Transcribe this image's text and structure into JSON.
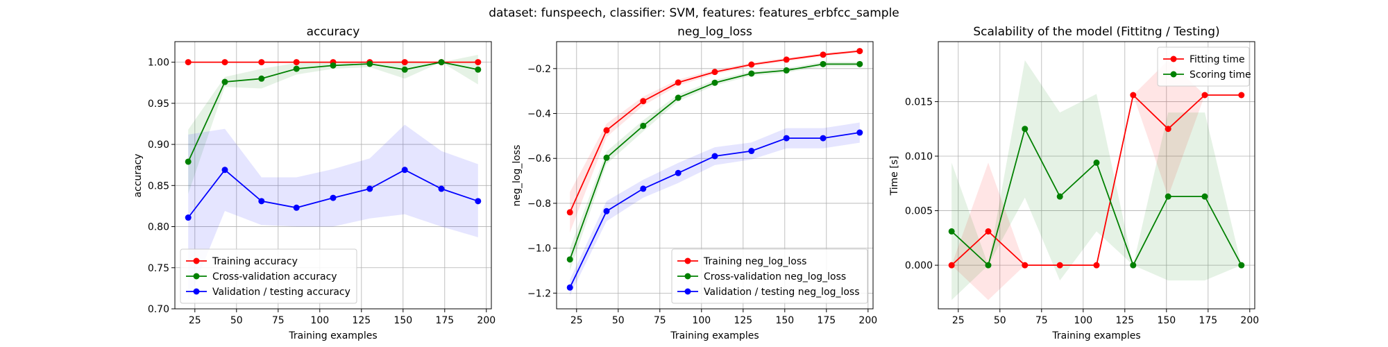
{
  "chart_data": {
    "suptitle": "dataset: funspeech, classifier: SVM, features: features_erbfcc_sample",
    "panels": [
      {
        "type": "line",
        "title": "accuracy",
        "xlabel": "Training examples",
        "ylabel": "accuracy",
        "xlim": [
          13,
          203
        ],
        "ylim": [
          0.7,
          1.025
        ],
        "xticks": [
          25,
          50,
          75,
          100,
          125,
          150,
          175,
          200
        ],
        "yticks": [
          0.7,
          0.75,
          0.8,
          0.85,
          0.9,
          0.95,
          1.0
        ],
        "ytick_labels": [
          "0.70",
          "0.75",
          "0.80",
          "0.85",
          "0.90",
          "0.95",
          "1.00"
        ],
        "grid": true,
        "legend": "lower-left",
        "x": [
          21,
          43,
          65,
          86,
          108,
          130,
          151,
          173,
          195
        ],
        "series": [
          {
            "name": "Training accuracy",
            "color": "#ff0000",
            "values": [
              1.0,
              1.0,
              1.0,
              1.0,
              1.0,
              1.0,
              1.0,
              1.0,
              1.0
            ],
            "lower": [
              1.0,
              1.0,
              1.0,
              1.0,
              1.0,
              1.0,
              1.0,
              1.0,
              1.0
            ],
            "upper": [
              1.0,
              1.0,
              1.0,
              1.0,
              1.0,
              1.0,
              1.0,
              1.0,
              1.0
            ]
          },
          {
            "name": "Cross-validation accuracy",
            "color": "#008000",
            "values": [
              0.879,
              0.976,
              0.98,
              0.992,
              0.996,
              0.998,
              0.991,
              1.0,
              0.991
            ],
            "lower": [
              0.84,
              0.97,
              0.968,
              0.985,
              0.992,
              0.994,
              0.98,
              1.0,
              0.973
            ],
            "upper": [
              0.918,
              0.982,
              0.992,
              0.999,
              1.0,
              1.0,
              1.002,
              1.0,
              1.009
            ]
          },
          {
            "name": "Validation / testing accuracy",
            "color": "#0000ff",
            "values": [
              0.811,
              0.869,
              0.831,
              0.823,
              0.835,
              0.846,
              0.869,
              0.846,
              0.831
            ],
            "lower": [
              0.71,
              0.819,
              0.802,
              0.8,
              0.8,
              0.81,
              0.815,
              0.8,
              0.787
            ],
            "upper": [
              0.912,
              0.919,
              0.86,
              0.86,
              0.87,
              0.883,
              0.924,
              0.892,
              0.876
            ]
          }
        ]
      },
      {
        "type": "line",
        "title": "neg_log_loss",
        "xlabel": "Training examples",
        "ylabel": "neg_log_loss",
        "xlim": [
          13,
          203
        ],
        "ylim": [
          -1.27,
          -0.08
        ],
        "xticks": [
          25,
          50,
          75,
          100,
          125,
          150,
          175,
          200
        ],
        "yticks": [
          -1.2,
          -1.0,
          -0.8,
          -0.6,
          -0.4,
          -0.2
        ],
        "ytick_labels": [
          "−1.2",
          "−1.0",
          "−0.8",
          "−0.6",
          "−0.4",
          "−0.2"
        ],
        "grid": true,
        "legend": "lower-right",
        "x": [
          21,
          43,
          65,
          86,
          108,
          130,
          151,
          173,
          195
        ],
        "series": [
          {
            "name": "Training neg_log_loss",
            "color": "#ff0000",
            "values": [
              -0.84,
              -0.475,
              -0.345,
              -0.262,
              -0.215,
              -0.182,
              -0.16,
              -0.138,
              -0.122
            ],
            "lower": [
              -0.93,
              -0.505,
              -0.365,
              -0.275,
              -0.225,
              -0.19,
              -0.168,
              -0.145,
              -0.128
            ],
            "upper": [
              -0.75,
              -0.445,
              -0.325,
              -0.249,
              -0.205,
              -0.174,
              -0.152,
              -0.131,
              -0.116
            ]
          },
          {
            "name": "Cross-validation neg_log_loss",
            "color": "#008000",
            "values": [
              -1.05,
              -0.597,
              -0.455,
              -0.33,
              -0.263,
              -0.222,
              -0.208,
              -0.18,
              -0.18
            ],
            "lower": [
              -1.1,
              -0.625,
              -0.48,
              -0.345,
              -0.275,
              -0.232,
              -0.218,
              -0.19,
              -0.19
            ],
            "upper": [
              -1.0,
              -0.569,
              -0.43,
              -0.315,
              -0.251,
              -0.212,
              -0.198,
              -0.17,
              -0.17
            ]
          },
          {
            "name": "Validation / testing neg_log_loss",
            "color": "#0000ff",
            "values": [
              -1.175,
              -0.835,
              -0.735,
              -0.665,
              -0.59,
              -0.567,
              -0.51,
              -0.51,
              -0.485
            ],
            "lower": [
              -1.21,
              -0.88,
              -0.775,
              -0.71,
              -0.63,
              -0.605,
              -0.555,
              -0.555,
              -0.53
            ],
            "upper": [
              -1.14,
              -0.79,
              -0.695,
              -0.62,
              -0.55,
              -0.529,
              -0.465,
              -0.465,
              -0.44
            ]
          }
        ]
      },
      {
        "type": "line",
        "title": "Scalability of the model (Fittitng / Testing)",
        "xlabel": "Training examples",
        "ylabel": "Time [s]",
        "xlim": [
          13,
          203
        ],
        "ylim": [
          -0.004,
          0.0205
        ],
        "xticks": [
          25,
          50,
          75,
          100,
          125,
          150,
          175,
          200
        ],
        "yticks": [
          0.0,
          0.005,
          0.01,
          0.015
        ],
        "ytick_labels": [
          "0.000",
          "0.005",
          "0.010",
          "0.015"
        ],
        "grid": true,
        "legend": "top-right",
        "x": [
          21,
          43,
          65,
          86,
          108,
          130,
          151,
          173,
          195
        ],
        "series": [
          {
            "name": "Fitting time",
            "color": "#ff0000",
            "values": [
              0.0,
              0.0031,
              0.0,
              0.0,
              0.0,
              0.0156,
              0.0125,
              0.0156,
              0.0156
            ],
            "lower": [
              0.0,
              -0.0032,
              0.0,
              0.0,
              0.0,
              0.0156,
              0.0063,
              0.0156,
              0.0156
            ],
            "upper": [
              0.0,
              0.0094,
              0.0,
              0.0,
              0.0,
              0.0156,
              0.0188,
              0.0156,
              0.0156
            ]
          },
          {
            "name": "Scoring time",
            "color": "#008000",
            "values": [
              0.0031,
              0.0,
              0.0125,
              0.0063,
              0.0094,
              0.0,
              0.0063,
              0.0063,
              0.0
            ],
            "lower": [
              -0.0032,
              0.0,
              0.0062,
              -0.0014,
              0.0031,
              0.0,
              -0.0014,
              -0.0014,
              0.0
            ],
            "upper": [
              0.0094,
              0.0,
              0.0188,
              0.014,
              0.0157,
              0.0,
              0.014,
              0.014,
              0.0
            ]
          }
        ]
      }
    ]
  }
}
